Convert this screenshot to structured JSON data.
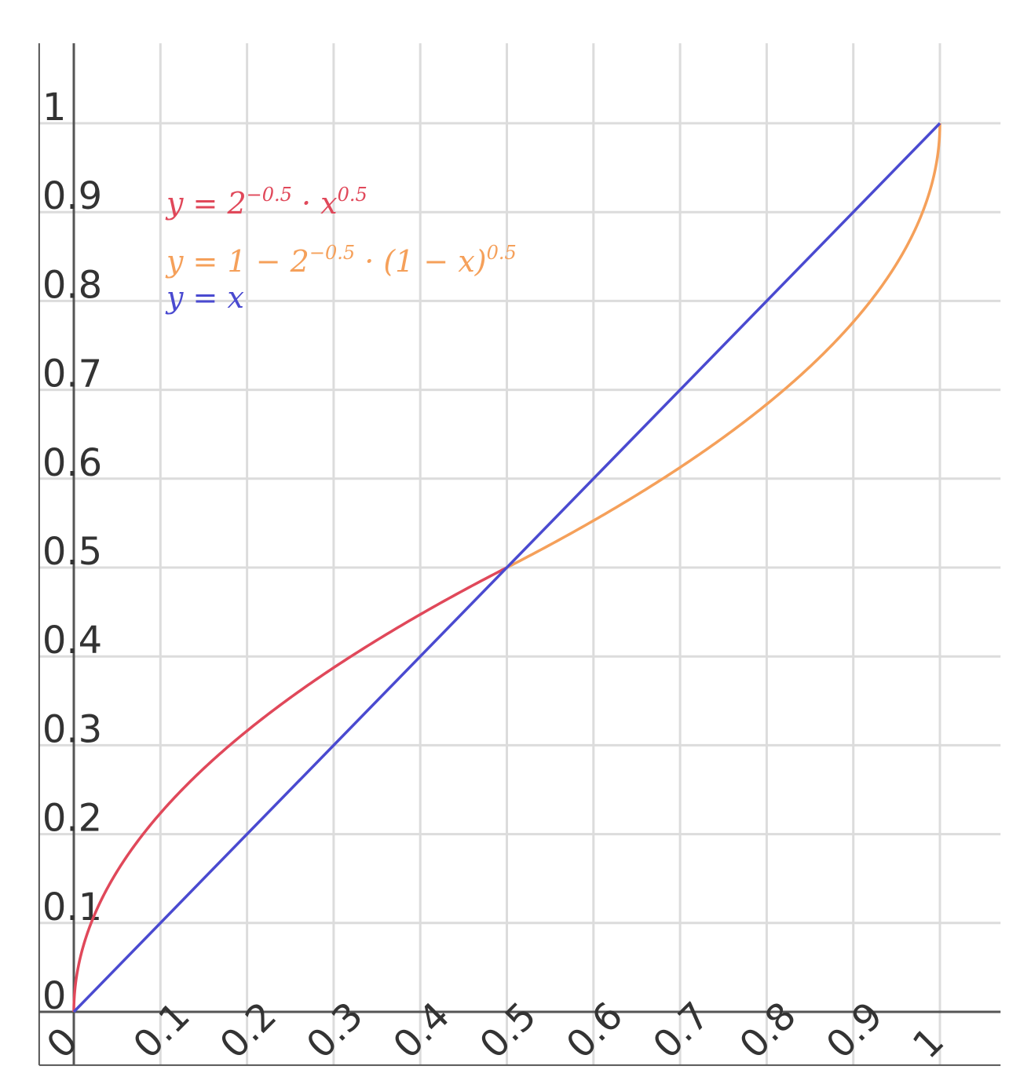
{
  "chart_data": {
    "type": "line",
    "title": "",
    "xlabel": "",
    "ylabel": "",
    "xlim": [
      0,
      1
    ],
    "ylim": [
      0,
      1
    ],
    "x_view": [
      -0.04,
      1.07
    ],
    "y_view": [
      -0.06,
      1.09
    ],
    "grid": true,
    "x_ticks": [
      "0",
      "0.1",
      "0.2",
      "0.3",
      "0.4",
      "0.5",
      "0.6",
      "0.7",
      "0.8",
      "0.9",
      "1"
    ],
    "y_ticks": [
      "0",
      "0.1",
      "0.2",
      "0.3",
      "0.4",
      "0.5",
      "0.6",
      "0.7",
      "0.8",
      "0.9",
      "1"
    ],
    "legend_position": "top-left",
    "series": [
      {
        "name": "y = 2^{-0.5} · x^{0.5}",
        "legend": {
          "lhs": "y = 2",
          "exp1": "−0.5",
          "mid": " · x",
          "exp2": "0.5",
          "tail": "",
          "exp3": ""
        },
        "color": "#e0485a",
        "domain": [
          0,
          0.5
        ],
        "x": [
          0,
          0.005,
          0.01,
          0.02,
          0.04,
          0.06,
          0.08,
          0.1,
          0.15,
          0.2,
          0.25,
          0.3,
          0.35,
          0.4,
          0.45,
          0.5
        ],
        "y": [
          0,
          0.05,
          0.0707,
          0.1,
          0.1414,
          0.1732,
          0.2,
          0.2236,
          0.2739,
          0.3162,
          0.3536,
          0.3873,
          0.4183,
          0.4472,
          0.4743,
          0.5
        ]
      },
      {
        "name": "y = 1 − 2^{-0.5} · (1 − x)^{0.5}",
        "legend": {
          "lhs": "y = 1 − 2",
          "exp1": "−0.5",
          "mid": " · (1 − x)",
          "exp2": "0.5",
          "tail": "",
          "exp3": ""
        },
        "color": "#f5a05a",
        "domain": [
          0.5,
          1
        ],
        "x": [
          0.5,
          0.55,
          0.6,
          0.65,
          0.7,
          0.75,
          0.8,
          0.85,
          0.9,
          0.92,
          0.94,
          0.96,
          0.98,
          0.99,
          0.995,
          1
        ],
        "y": [
          0.5,
          0.5257,
          0.5528,
          0.5817,
          0.6127,
          0.6464,
          0.6838,
          0.7261,
          0.7764,
          0.8,
          0.8268,
          0.8586,
          0.9,
          0.9293,
          0.95,
          1
        ]
      },
      {
        "name": "y = x",
        "legend": {
          "lhs": "y = x",
          "exp1": "",
          "mid": "",
          "exp2": "",
          "tail": "",
          "exp3": ""
        },
        "color": "#4a4ad0",
        "domain": [
          0,
          1
        ],
        "x": [
          0,
          1
        ],
        "y": [
          0,
          1
        ]
      }
    ]
  }
}
